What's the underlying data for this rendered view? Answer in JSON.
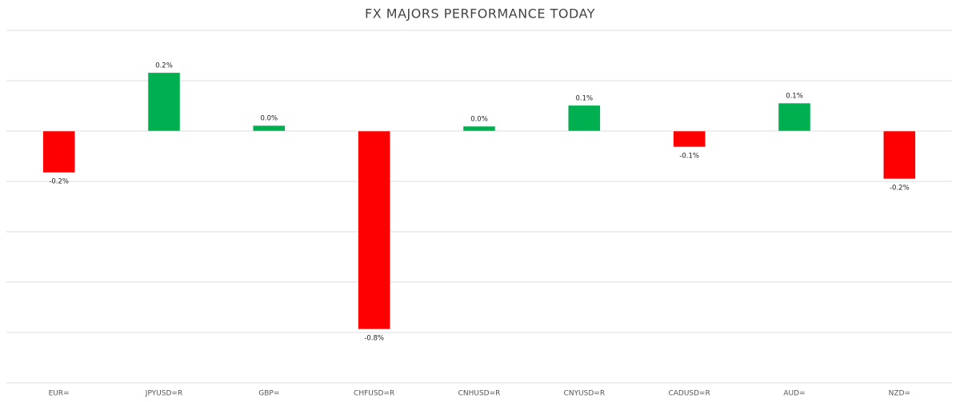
{
  "chart_data": {
    "type": "bar",
    "title": "FX MAJORS PERFORMANCE TODAY",
    "categories": [
      "EUR=",
      "JPYUSD=R",
      "GBP=",
      "CHFUSD=R",
      "CNHUSD=R",
      "CNYUSD=R",
      "CADUSD=R",
      "AUD=",
      "NZD="
    ],
    "values": [
      -0.165,
      0.232,
      0.022,
      -0.787,
      0.019,
      0.102,
      -0.063,
      0.111,
      -0.19
    ],
    "value_labels": [
      "-0.2%",
      "0.2%",
      "0.0%",
      "-0.8%",
      "0.0%",
      "0.1%",
      "-0.1%",
      "0.1%",
      "-0.2%"
    ],
    "positive_color": "#00b050",
    "negative_color": "#ff0000",
    "ylim": [
      -1.0,
      0.4
    ],
    "yticks": [
      -1.0,
      -0.8,
      -0.6,
      -0.4,
      -0.2,
      0,
      0.2,
      0.4
    ],
    "grid": true
  }
}
